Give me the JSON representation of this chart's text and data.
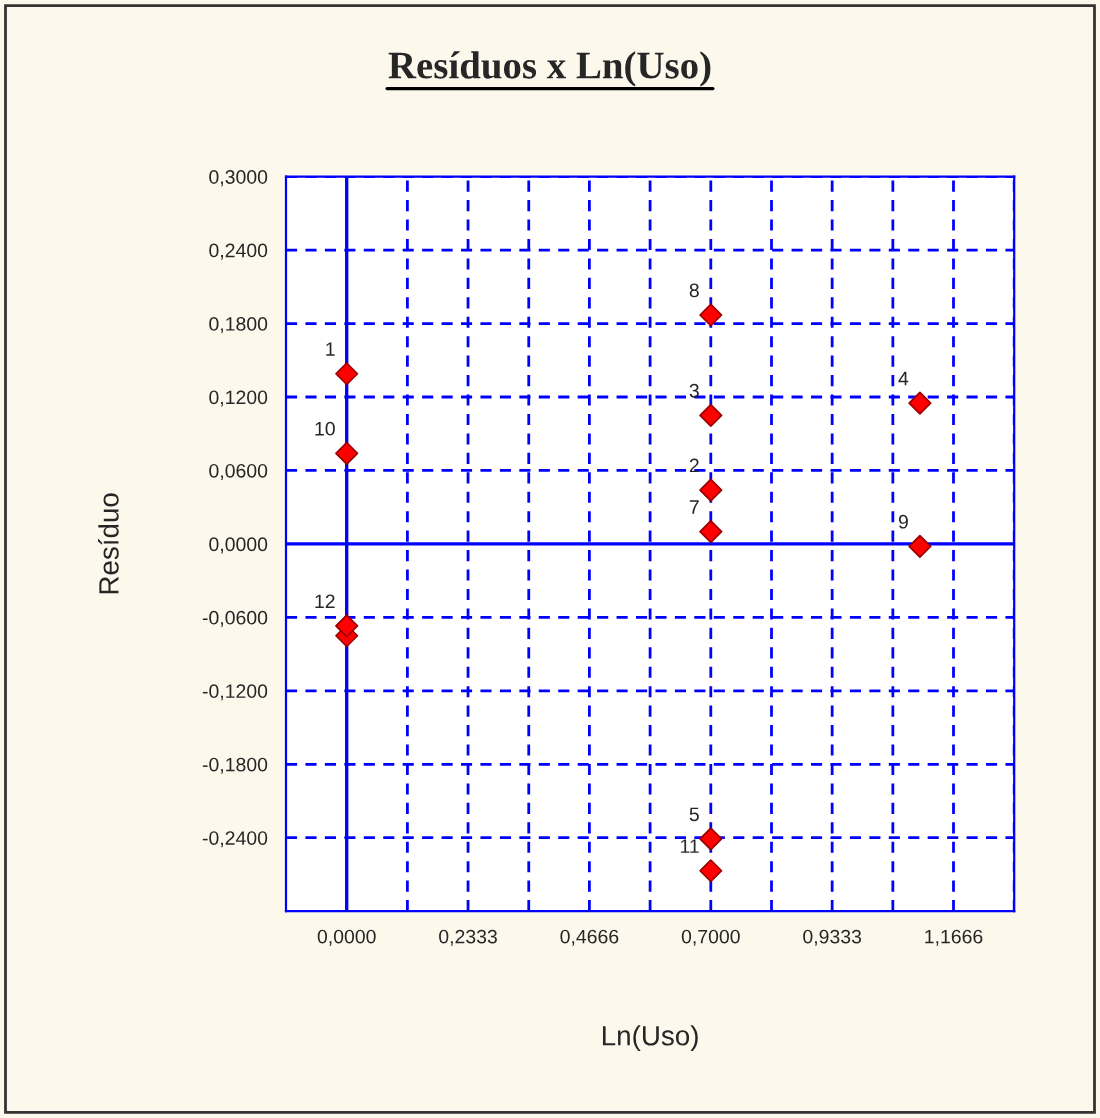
{
  "chart_data": {
    "type": "scatter",
    "title": "Resíduos x Ln(Uso)",
    "xlabel": "Ln(Uso)",
    "ylabel": "Resíduo",
    "x": [
      0,
      0.7,
      0.7,
      1.102,
      0.7,
      0,
      0.7,
      0.7,
      1.102,
      0,
      0.7,
      0
    ],
    "series": [
      {
        "color": "#ff0000",
        "values": [
          0.139,
          0.044,
          0.105,
          0.115,
          -0.241,
          -0.075,
          0.01,
          0.187,
          -0.002,
          0.074,
          -0.267,
          -0.067
        ]
      }
    ],
    "marker": "diamond",
    "xlim": [
      -0.1167,
      1.2833
    ],
    "ylim": [
      -0.3,
      0.3
    ],
    "xticks": [
      {
        "value": 0,
        "label": "0,0000"
      },
      {
        "value": 0.1167,
        "label": null
      },
      {
        "value": 0.2333,
        "label": "0,2333"
      },
      {
        "value": 0.35,
        "label": null
      },
      {
        "value": 0.4666,
        "label": "0,4666"
      },
      {
        "value": 0.5833,
        "label": null
      },
      {
        "value": 0.7,
        "label": "0,7000"
      },
      {
        "value": 0.8167,
        "label": null
      },
      {
        "value": 0.9333,
        "label": "0,9333"
      },
      {
        "value": 1.05,
        "label": null
      },
      {
        "value": 1.1666,
        "label": "1,1666"
      },
      {
        "value": 1.2833,
        "label": null
      }
    ],
    "yticks": [
      {
        "value": 0.3,
        "label": "0,3000"
      },
      {
        "value": 0.24,
        "label": "0,2400"
      },
      {
        "value": 0.18,
        "label": "0,1800"
      },
      {
        "value": 0.12,
        "label": "0,1200"
      },
      {
        "value": 0.06,
        "label": "0,0600"
      },
      {
        "value": 0,
        "label": "0,0000"
      },
      {
        "value": -0.06,
        "label": "-0,0600"
      },
      {
        "value": -0.12,
        "label": "-0,1200"
      },
      {
        "value": -0.18,
        "label": "-0,1800"
      },
      {
        "value": -0.24,
        "label": "-0,2400"
      }
    ],
    "grid": true,
    "legend": false,
    "annotations": [
      {
        "text": "1",
        "x": 0,
        "y": 0.139
      },
      {
        "text": "2",
        "x": 0.7,
        "y": 0.044
      },
      {
        "text": "3",
        "x": 0.7,
        "y": 0.105
      },
      {
        "text": "4",
        "x": 1.102,
        "y": 0.115
      },
      {
        "text": "5",
        "x": 0.7,
        "y": -0.241
      },
      {
        "text": "7",
        "x": 0.7,
        "y": 0.01
      },
      {
        "text": "8",
        "x": 0.7,
        "y": 0.187
      },
      {
        "text": "9",
        "x": 1.102,
        "y": -0.002
      },
      {
        "text": "10",
        "x": 0,
        "y": 0.074
      },
      {
        "text": "11",
        "x": 0.7,
        "y": -0.267
      },
      {
        "text": "12",
        "x": 0,
        "y": -0.067
      }
    ]
  }
}
